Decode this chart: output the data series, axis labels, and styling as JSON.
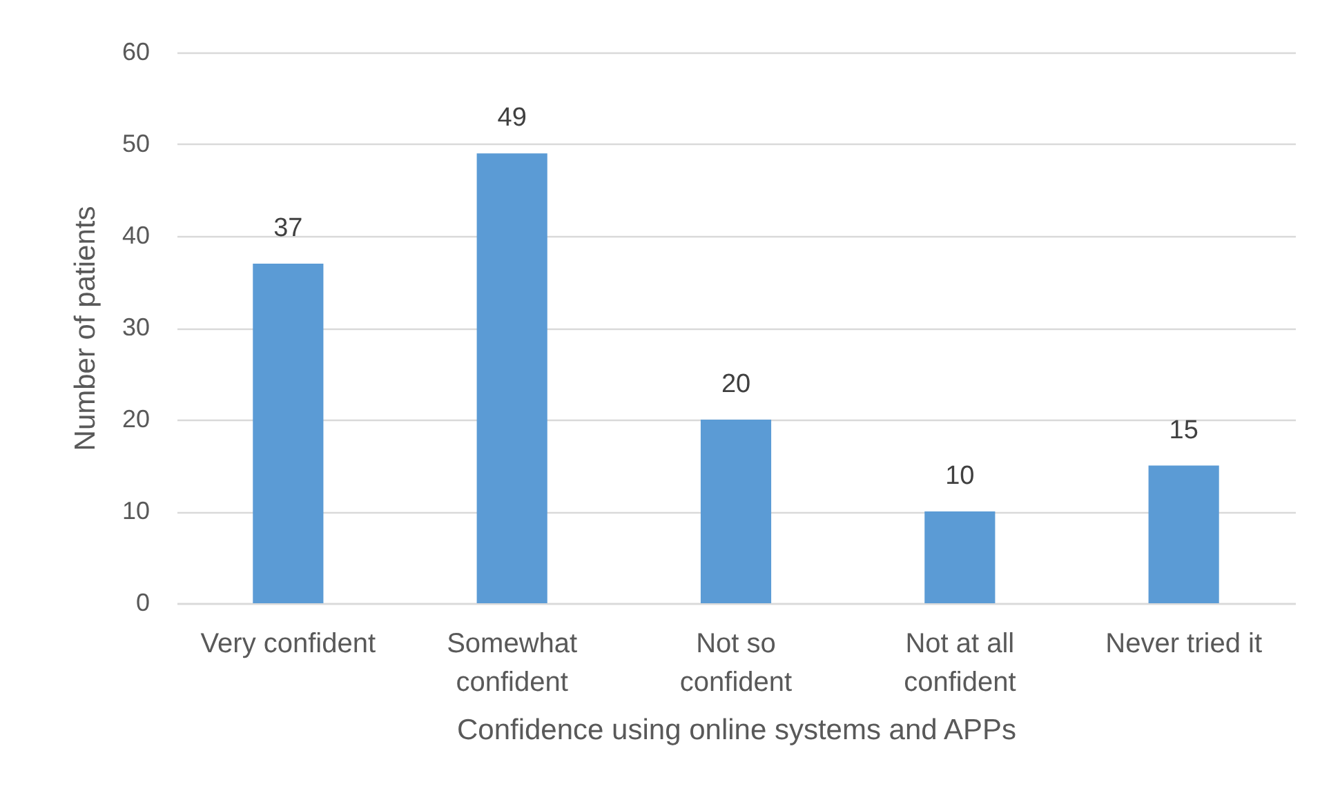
{
  "chart_data": {
    "type": "bar",
    "xlabel": "Confidence using online systems and APPs",
    "ylabel": "Number of patients",
    "categories": [
      "Very confident",
      "Somewhat confident",
      "Not so confident",
      "Not at all confident",
      "Never tried it"
    ],
    "values": [
      37,
      49,
      20,
      10,
      15
    ],
    "color": "#5b9bd5",
    "ylim": [
      0,
      60
    ],
    "yticks": [
      0,
      10,
      20,
      30,
      40,
      50,
      60
    ],
    "grid": "y",
    "data_labels": true
  }
}
